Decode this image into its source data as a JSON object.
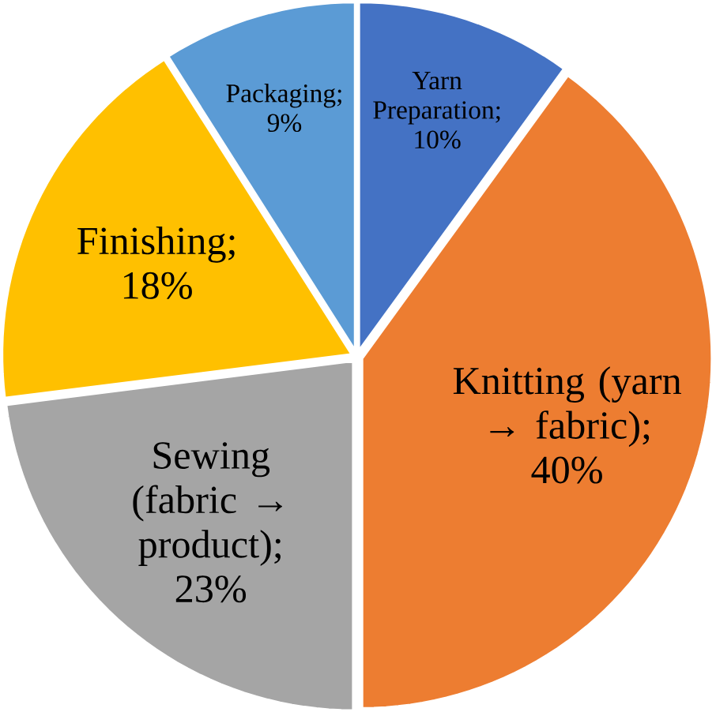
{
  "chart_data": {
    "type": "pie",
    "categories": [
      "Yarn Preparation",
      "Knitting (yarn → fabric)",
      "Sewing (fabric → product)",
      "Finishing",
      "Packaging"
    ],
    "values": [
      10,
      40,
      23,
      18,
      9
    ],
    "value_labels": [
      "; 10%",
      "; 40%",
      "; 23%",
      "; 18%",
      "; 9%"
    ],
    "colors": [
      "#4472c4",
      "#ed7d31",
      "#a5a5a5",
      "#ffc000",
      "#5b9bd5"
    ]
  }
}
